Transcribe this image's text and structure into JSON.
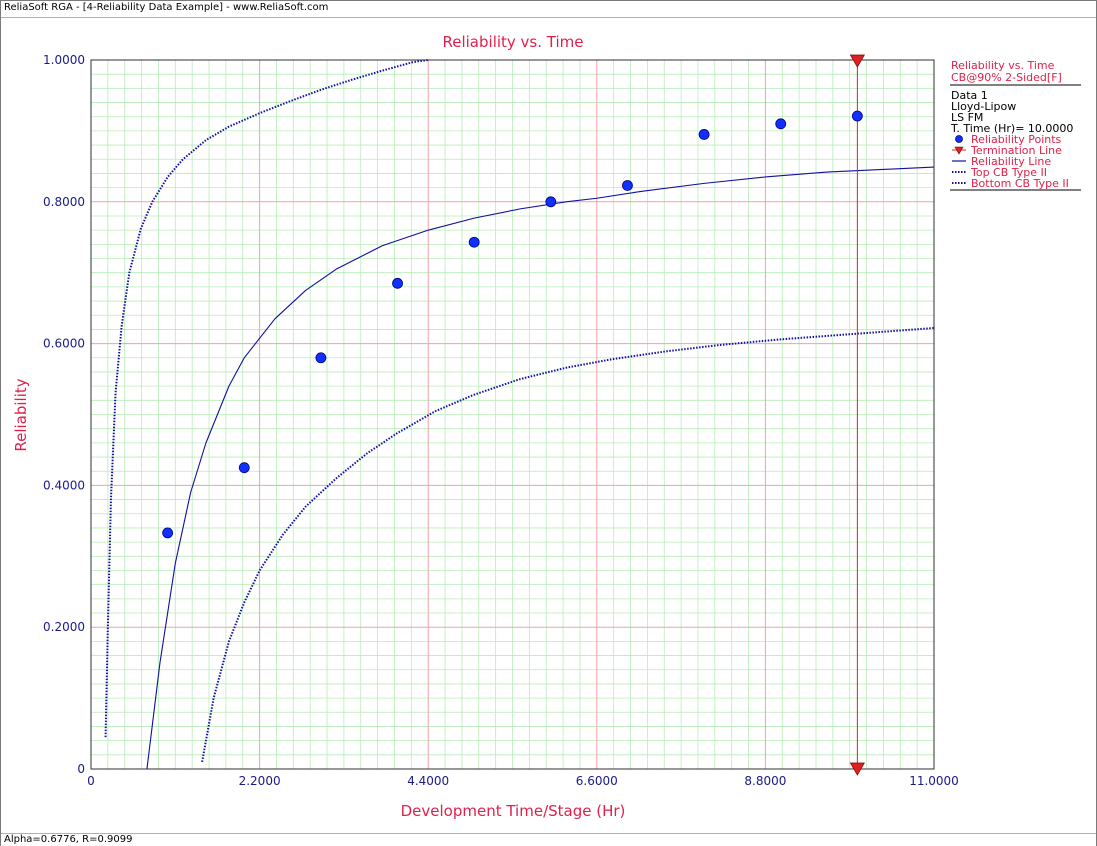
{
  "window": {
    "title": "ReliaSoft RGA - [4-Reliability Data Example] - www.ReliaSoft.com",
    "status": "Alpha=0.6776, R=0.9099"
  },
  "colors": {
    "title": "#e0204a",
    "axis_label": "#e0204a",
    "tick_label": "#1a1a8c",
    "major_grid": "#f2a0a8",
    "minor_grid": "#b8ecb8",
    "curve": "#1010a0",
    "points": "#1030ff",
    "termination": "#e02020"
  },
  "chart_data": {
    "type": "scatter",
    "title": "Reliability vs. Time",
    "xlabel": "Development Time/Stage (Hr)",
    "ylabel": "Reliability",
    "xlim": [
      0,
      11
    ],
    "ylim": [
      0,
      1
    ],
    "x_ticks": [
      "0",
      "2.2000",
      "4.4000",
      "6.6000",
      "8.8000",
      "11.0000"
    ],
    "x_tick_values": [
      0,
      2.2,
      4.4,
      6.6,
      8.8,
      11
    ],
    "y_ticks": [
      "0",
      "0.2000",
      "0.4000",
      "0.6000",
      "0.8000",
      "1.0000"
    ],
    "y_tick_values": [
      0,
      0.2,
      0.4,
      0.6,
      0.8,
      1
    ],
    "grid": true,
    "legend_position": "right",
    "points": {
      "name": "Reliability Points",
      "x": [
        1,
        2,
        3,
        4,
        5,
        6,
        7,
        8,
        9,
        10
      ],
      "y": [
        0.333,
        0.425,
        0.58,
        0.685,
        0.743,
        0.8,
        0.823,
        0.895,
        0.91,
        0.921
      ]
    },
    "termination_line": {
      "name": "Termination Line",
      "x": 10
    },
    "series": [
      {
        "name": "Reliability Line",
        "style": "solid",
        "x": [
          0.73,
          0.9,
          1.1,
          1.3,
          1.5,
          1.8,
          2.0,
          2.4,
          2.8,
          3.2,
          3.8,
          4.4,
          5.0,
          5.6,
          6.2,
          6.6,
          7.2,
          8.0,
          8.8,
          9.6,
          10.4,
          11.0
        ],
        "y": [
          0.0,
          0.15,
          0.29,
          0.39,
          0.46,
          0.54,
          0.58,
          0.635,
          0.675,
          0.705,
          0.738,
          0.76,
          0.777,
          0.79,
          0.8,
          0.805,
          0.815,
          0.826,
          0.835,
          0.842,
          0.846,
          0.849
        ]
      },
      {
        "name": "Top CB Type II",
        "style": "dotted",
        "x": [
          0.19,
          0.22,
          0.26,
          0.32,
          0.4,
          0.5,
          0.65,
          0.8,
          1.0,
          1.2,
          1.5,
          1.8,
          2.2,
          2.6,
          3.0,
          3.4,
          3.8,
          4.2,
          4.4
        ],
        "y": [
          0.045,
          0.2,
          0.38,
          0.53,
          0.625,
          0.7,
          0.762,
          0.8,
          0.835,
          0.86,
          0.887,
          0.906,
          0.925,
          0.942,
          0.958,
          0.972,
          0.985,
          0.997,
          1.0
        ]
      },
      {
        "name": "Bottom CB Type II",
        "style": "dotted",
        "x": [
          1.45,
          1.6,
          1.8,
          2.0,
          2.2,
          2.5,
          2.8,
          3.2,
          3.6,
          4.0,
          4.5,
          5.0,
          5.6,
          6.2,
          6.8,
          7.5,
          8.2,
          9.0,
          10.0,
          11.0
        ],
        "y": [
          0.01,
          0.1,
          0.18,
          0.235,
          0.28,
          0.33,
          0.37,
          0.41,
          0.445,
          0.474,
          0.505,
          0.528,
          0.55,
          0.566,
          0.578,
          0.589,
          0.598,
          0.606,
          0.614,
          0.622
        ]
      }
    ]
  },
  "legend": {
    "header1": "Reliability vs. Time",
    "header2": "CB@90% 2-Sided[F]",
    "info": [
      "Data 1",
      "Lloyd-Lipow",
      "LS FM",
      "T. Time (Hr)= 10.0000"
    ],
    "items": [
      "Reliability Points",
      "Termination Line",
      "Reliability Line",
      "Top CB Type II",
      "Bottom CB Type II"
    ]
  }
}
